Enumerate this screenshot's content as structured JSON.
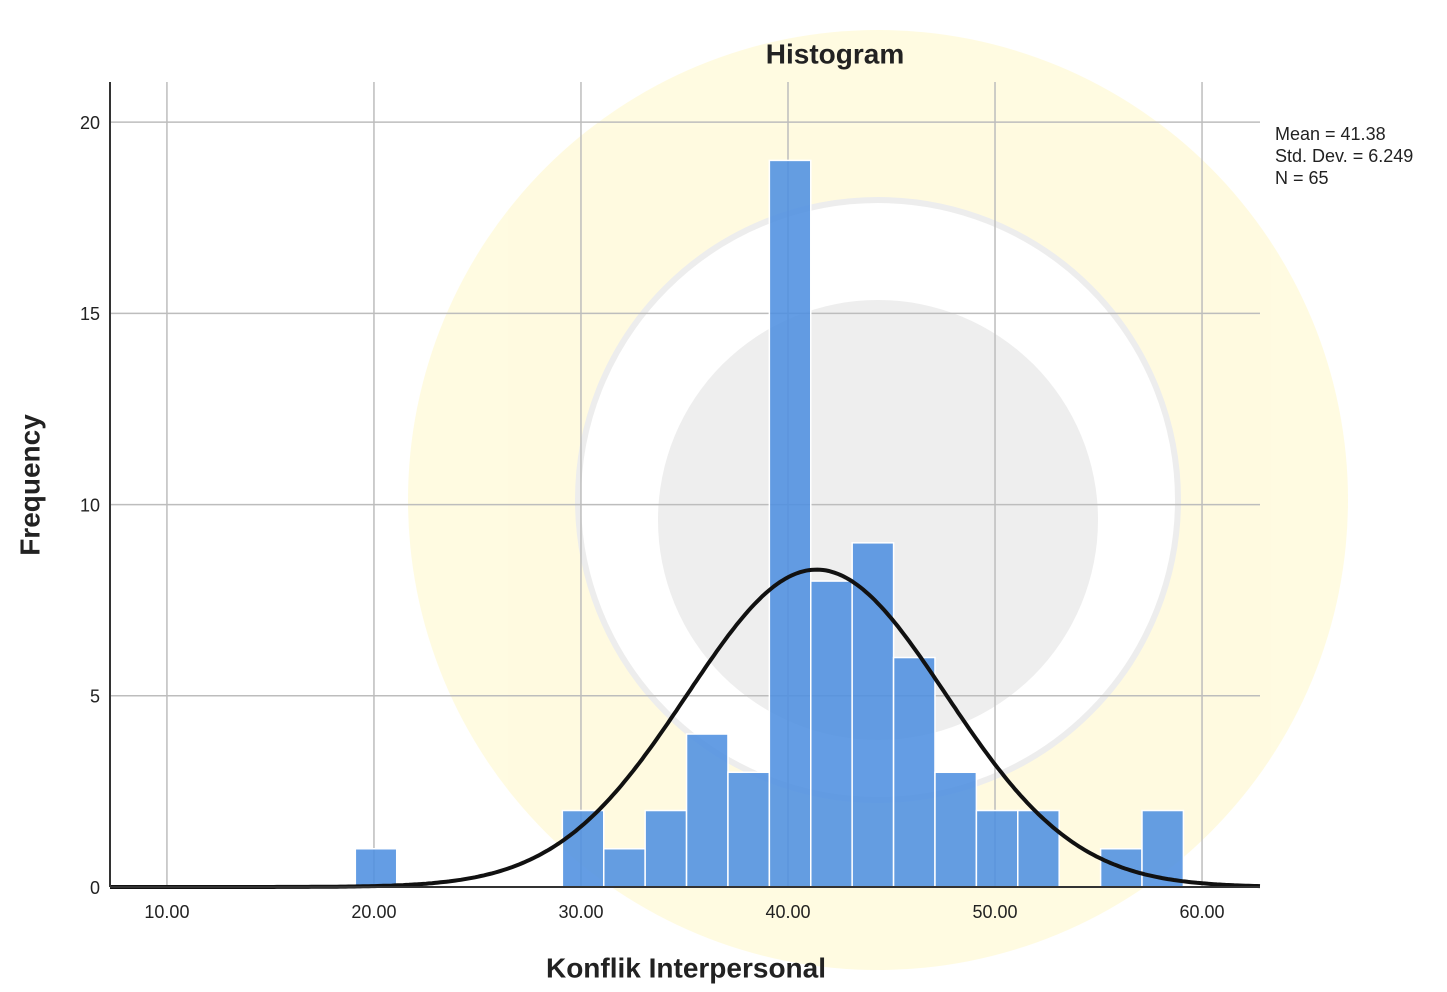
{
  "chart_data": {
    "type": "histogram",
    "title": "Histogram",
    "x_label": "Konflik Interpersonal",
    "y_label": "Frequency",
    "bins": [
      19.1,
      21.1,
      23.1,
      25.1,
      27.1,
      29.1,
      31.1,
      33.1,
      35.1,
      37.1,
      39.1,
      41.1,
      43.1,
      45.1,
      47.1,
      49.1,
      51.1,
      53.1,
      55.1,
      57.1,
      59.1
    ],
    "values": [
      1,
      0,
      0,
      0,
      0,
      2,
      1,
      2,
      4,
      3,
      19,
      8,
      9,
      6,
      3,
      2,
      2,
      0,
      1,
      2
    ],
    "color": "#4f8fe0",
    "curve_color": "#111111",
    "xlim": [
      7.25,
      62.8
    ],
    "ylim": [
      0,
      21.05
    ],
    "xticks": [
      {
        "value": 10,
        "label": "10.00"
      },
      {
        "value": 20,
        "label": "20.00"
      },
      {
        "value": 30,
        "label": "30.00"
      },
      {
        "value": 40,
        "label": "40.00"
      },
      {
        "value": 50,
        "label": "50.00"
      },
      {
        "value": 60,
        "label": "60.00"
      }
    ],
    "yticks": [
      0,
      5,
      10,
      15,
      20
    ],
    "grid": true,
    "stats": [
      {
        "value": 41.38,
        "label": "Mean = 41.38"
      },
      {
        "value": 6.249,
        "label": "Std. Dev. = 6.249"
      },
      {
        "value": 65,
        "label": "N = 65"
      }
    ]
  }
}
